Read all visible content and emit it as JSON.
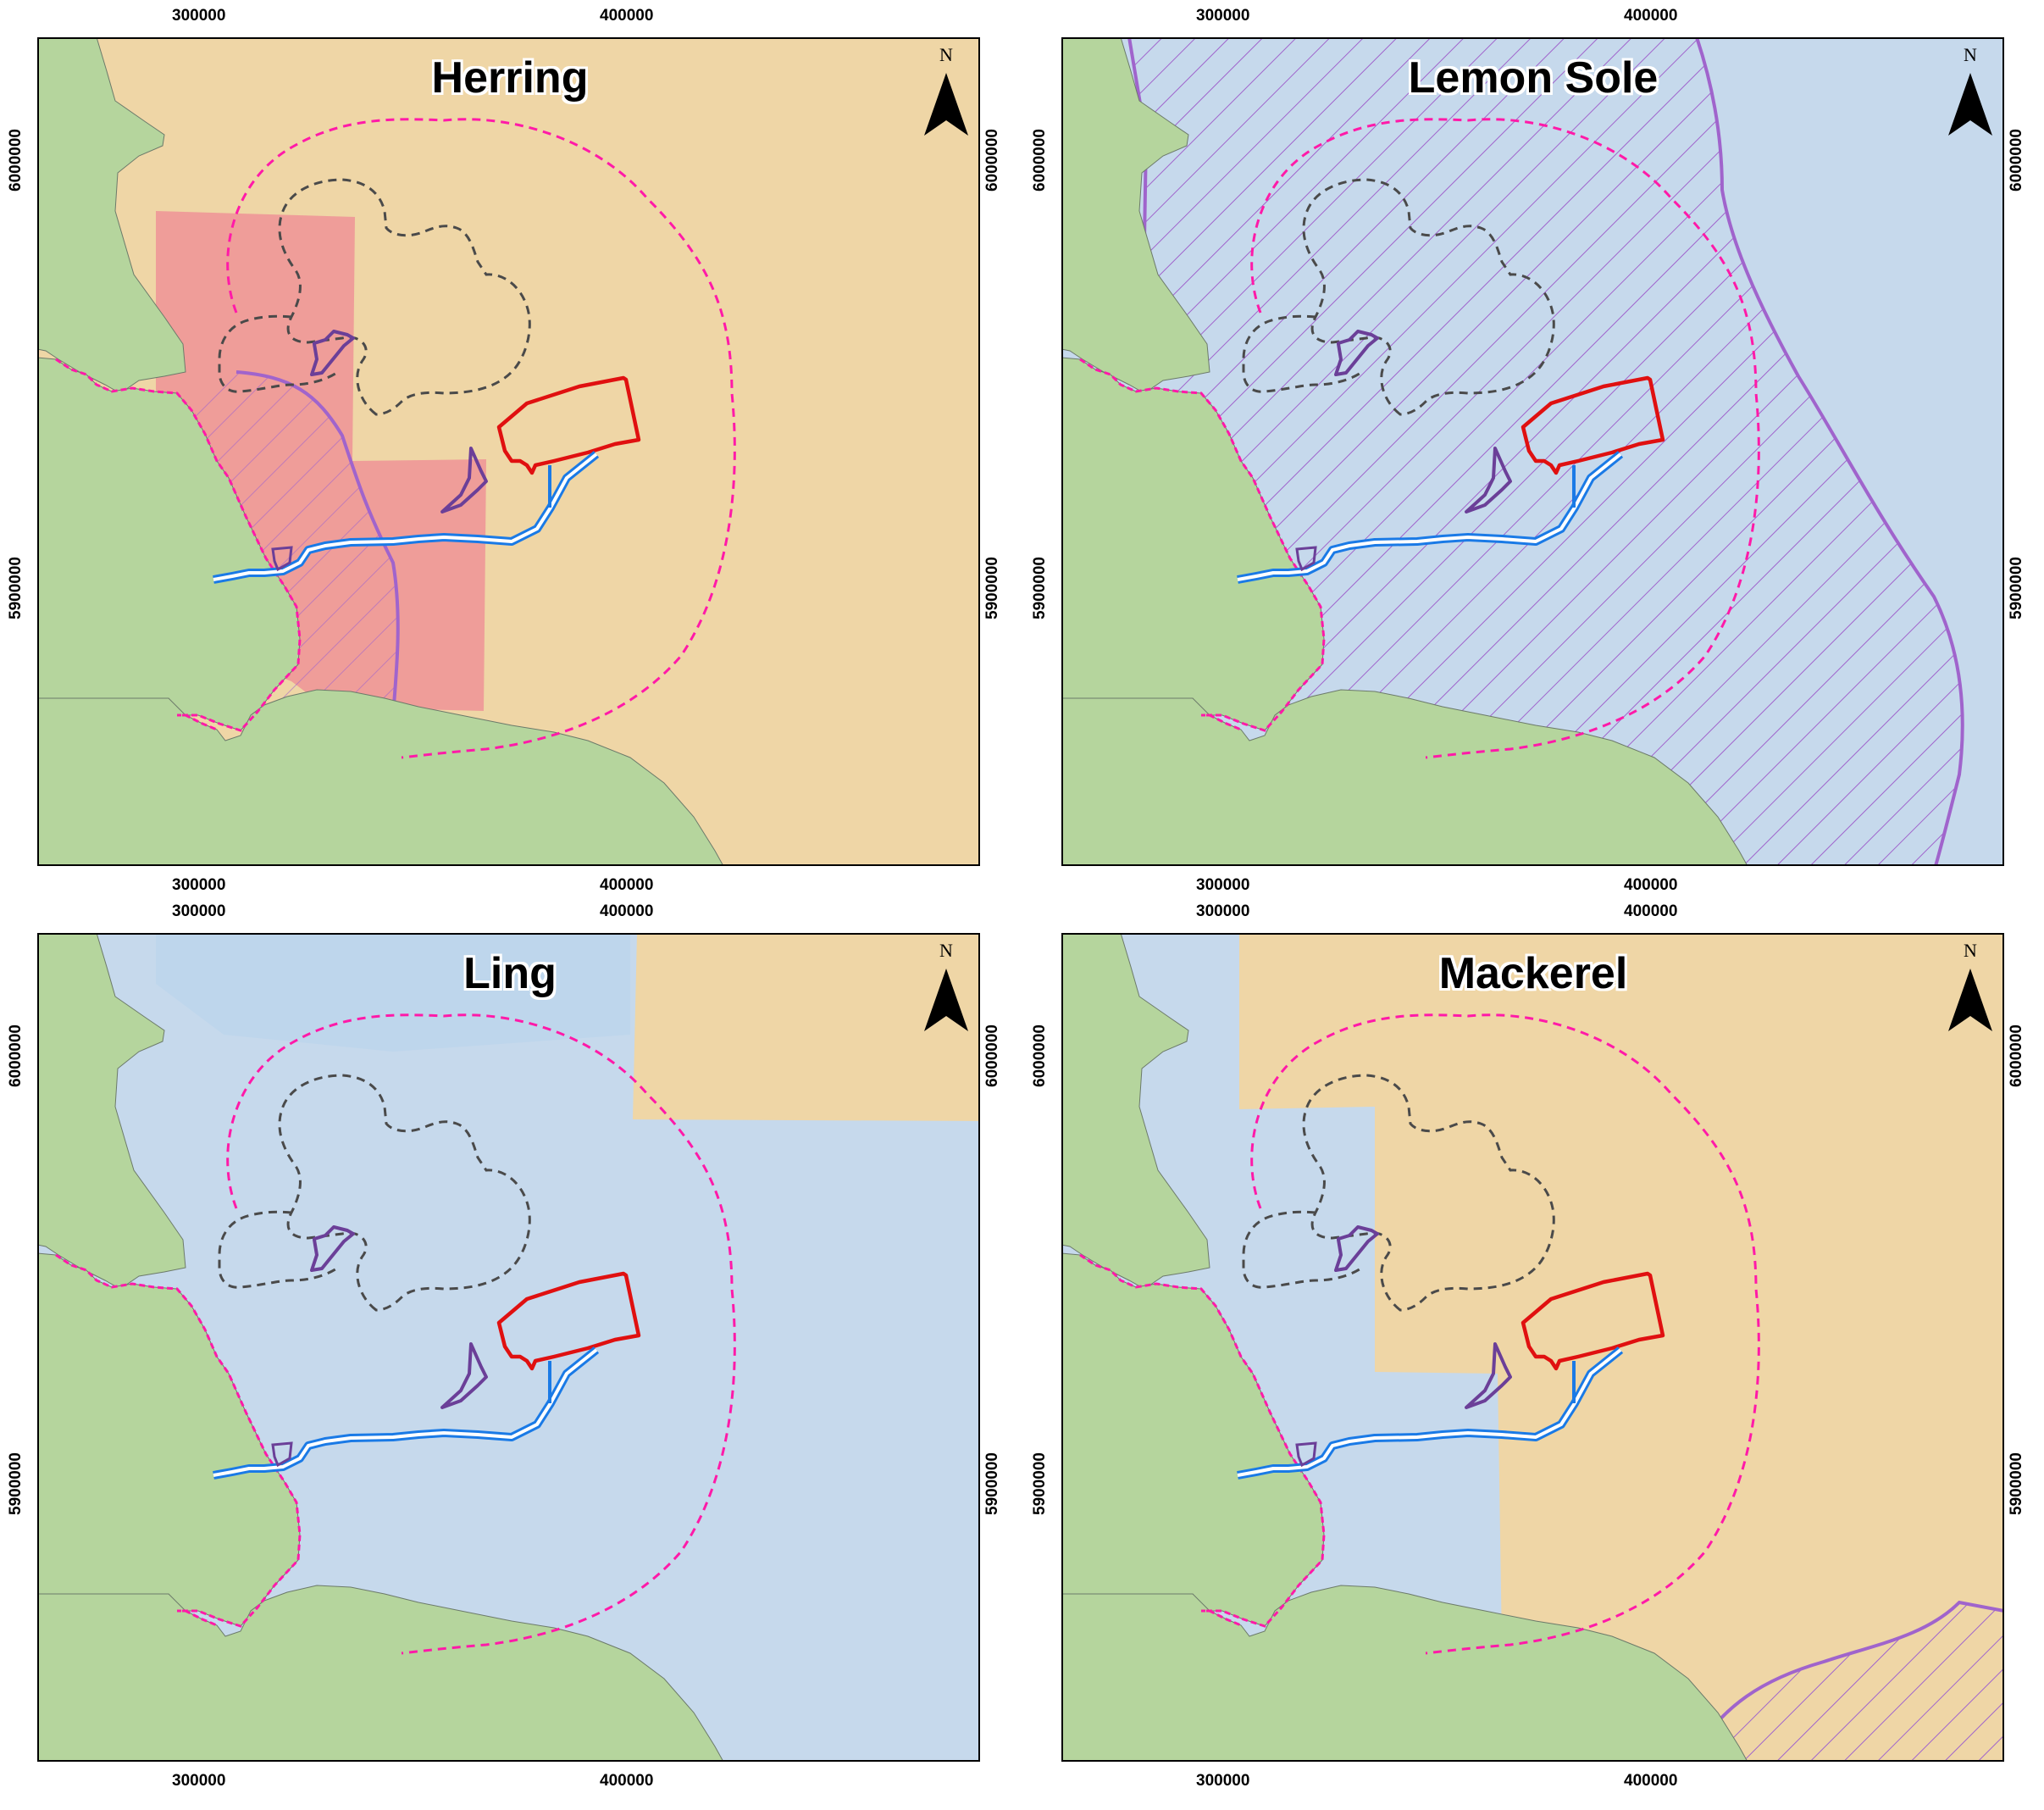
{
  "panels": [
    {
      "id": "herring",
      "title": "Herring",
      "sea": "#efd6a6",
      "overlay": "herring"
    },
    {
      "id": "lemon-sole",
      "title": "Lemon Sole",
      "sea": "#c6d9ec",
      "overlay": "lemonsole"
    },
    {
      "id": "ling",
      "title": "Ling",
      "sea": "#c6d9ec",
      "overlay": "ling"
    },
    {
      "id": "mackerel",
      "title": "Mackerel",
      "sea": "#c6d9ec",
      "overlay": "mackerel"
    }
  ],
  "axes": {
    "x_ticks": [
      "300000",
      "400000"
    ],
    "y_ticks": [
      "6000000",
      "5900000"
    ]
  },
  "north_label": "N",
  "colors": {
    "land": "#b5d59d",
    "sand": "#efd6a6",
    "water_light": "#c6d9ec",
    "water_dark": "#b9d3ec",
    "pink_zone": "#ee9a98",
    "boundary_purple": "#a064cc",
    "buffer_magenta": "#ff1aa8",
    "buffer_grey": "#4a4a4a",
    "site_red": "#e01010",
    "site_purple": "#6b3f98",
    "cable_blue": "#1a7ae6"
  },
  "icons": [
    "north-arrow-icon"
  ]
}
